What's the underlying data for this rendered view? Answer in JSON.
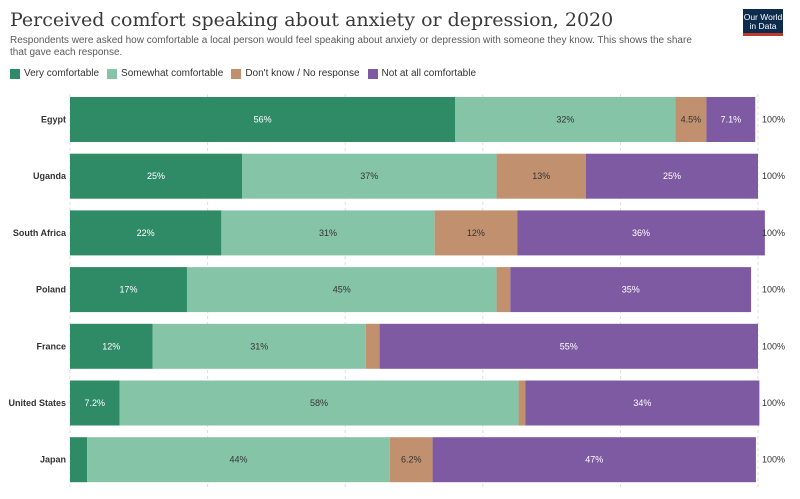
{
  "header": {
    "title": "Perceived comfort speaking about anxiety or depression, 2020",
    "subtitle": "Respondents were asked how comfortable a local person would feel speaking about anxiety or depression with someone they know. This shows the share that gave each response.",
    "logo_line1": "Our World",
    "logo_line2": "in Data"
  },
  "legend": [
    {
      "label": "Very comfortable",
      "color": "#2e8b66"
    },
    {
      "label": "Somewhat comfortable",
      "color": "#86c4a8"
    },
    {
      "label": "Don't know / No response",
      "color": "#c1906f"
    },
    {
      "label": "Not at all comfortable",
      "color": "#7e5aa2"
    }
  ],
  "chart_data": {
    "type": "bar",
    "orientation": "horizontal-stacked",
    "title": "Perceived comfort speaking about anxiety or depression, 2020",
    "categories": [
      "Egypt",
      "Uganda",
      "South Africa",
      "Poland",
      "France",
      "United States",
      "Japan"
    ],
    "series": [
      {
        "name": "Very comfortable",
        "color": "#2e8b66",
        "values": [
          56,
          25,
          22,
          17,
          12,
          7.2,
          2.5
        ],
        "labels": [
          "56%",
          "25%",
          "22%",
          "17%",
          "12%",
          "7.2%",
          ""
        ]
      },
      {
        "name": "Somewhat comfortable",
        "color": "#86c4a8",
        "values": [
          32,
          37,
          31,
          45,
          31,
          58,
          44
        ],
        "labels": [
          "32%",
          "37%",
          "31%",
          "45%",
          "31%",
          "58%",
          "44%"
        ]
      },
      {
        "name": "Don't know / No response",
        "color": "#c1906f",
        "values": [
          4.5,
          13,
          12,
          2,
          2,
          1,
          6.2
        ],
        "labels": [
          "4.5%",
          "13%",
          "12%",
          "",
          "",
          "",
          "6.2%"
        ]
      },
      {
        "name": "Not at all comfortable",
        "color": "#7e5aa2",
        "values": [
          7.1,
          25,
          36,
          35,
          55,
          34,
          47
        ],
        "labels": [
          "7.1%",
          "25%",
          "36%",
          "35%",
          "55%",
          "34%",
          "47%"
        ]
      }
    ],
    "totals": [
      "100%",
      "100%",
      "100%",
      "100%",
      "100%",
      "100%",
      "100%"
    ],
    "xlim": [
      0,
      100
    ],
    "grid": true,
    "legend_position": "top-left"
  }
}
